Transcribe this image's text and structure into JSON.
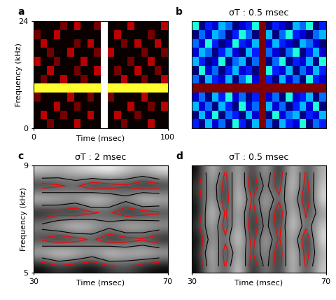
{
  "chart_data": [
    {
      "type": "heatmap",
      "panel": "a",
      "x_label": "Time (msec)",
      "y_label": "Frequency (kHz)",
      "xlim": [
        0,
        100
      ],
      "ylim": [
        0,
        24
      ],
      "xticks": [
        0,
        100
      ],
      "yticks": [
        0,
        24
      ],
      "cells": [
        [
          0.05,
          0.05,
          0.2,
          0.05,
          0.05,
          0.05,
          0.3,
          0.05,
          0.05,
          0.05,
          1.0,
          0.05,
          0.05,
          0.2,
          0.05,
          0.05,
          0.05,
          0.3,
          0.05,
          0.05
        ],
        [
          0.05,
          0.3,
          0.05,
          0.05,
          0.2,
          0.05,
          0.05,
          0.05,
          0.3,
          0.05,
          1.0,
          0.05,
          0.3,
          0.05,
          0.05,
          0.2,
          0.05,
          0.05,
          0.05,
          0.05
        ],
        [
          0.05,
          0.05,
          0.05,
          0.3,
          0.05,
          0.05,
          0.2,
          0.05,
          0.05,
          0.05,
          1.0,
          0.05,
          0.05,
          0.05,
          0.3,
          0.05,
          0.05,
          0.2,
          0.05,
          0.3
        ],
        [
          0.2,
          0.05,
          0.05,
          0.05,
          0.05,
          0.3,
          0.05,
          0.05,
          0.2,
          0.05,
          1.0,
          0.2,
          0.05,
          0.05,
          0.05,
          0.05,
          0.3,
          0.05,
          0.05,
          0.05
        ],
        [
          0.8,
          0.8,
          0.8,
          0.8,
          0.8,
          0.8,
          0.8,
          0.8,
          0.8,
          0.8,
          1.0,
          0.8,
          0.8,
          0.8,
          0.8,
          0.8,
          0.8,
          0.8,
          0.8,
          0.8
        ],
        [
          0.05,
          0.2,
          0.05,
          0.05,
          0.3,
          0.05,
          0.05,
          0.2,
          0.05,
          0.05,
          1.0,
          0.05,
          0.05,
          0.3,
          0.05,
          0.05,
          0.2,
          0.05,
          0.05,
          0.3
        ],
        [
          0.05,
          0.05,
          0.3,
          0.05,
          0.05,
          0.05,
          0.2,
          0.05,
          0.05,
          0.3,
          1.0,
          0.05,
          0.2,
          0.05,
          0.05,
          0.3,
          0.05,
          0.05,
          0.2,
          0.05
        ],
        [
          0.3,
          0.05,
          0.05,
          0.2,
          0.05,
          0.05,
          0.05,
          0.3,
          0.05,
          0.05,
          1.0,
          0.05,
          0.05,
          0.05,
          0.2,
          0.05,
          0.05,
          0.3,
          0.05,
          0.05
        ],
        [
          0.05,
          0.05,
          0.2,
          0.05,
          0.05,
          0.3,
          0.05,
          0.05,
          0.05,
          0.2,
          1.0,
          0.3,
          0.05,
          0.05,
          0.05,
          0.05,
          0.2,
          0.05,
          0.05,
          0.2
        ],
        [
          0.05,
          0.3,
          0.05,
          0.05,
          0.05,
          0.05,
          0.2,
          0.05,
          0.3,
          0.05,
          1.0,
          0.05,
          0.05,
          0.2,
          0.05,
          0.3,
          0.05,
          0.05,
          0.3,
          0.05
        ],
        [
          0.2,
          0.05,
          0.05,
          0.3,
          0.05,
          0.05,
          0.05,
          0.05,
          0.05,
          0.05,
          1.0,
          0.05,
          0.3,
          0.05,
          0.05,
          0.05,
          0.05,
          0.2,
          0.05,
          0.05
        ],
        [
          0.05,
          0.05,
          0.05,
          0.05,
          0.2,
          0.05,
          0.3,
          0.05,
          0.05,
          0.2,
          1.0,
          0.05,
          0.05,
          0.05,
          0.3,
          0.05,
          0.05,
          0.05,
          0.05,
          0.3
        ]
      ]
    },
    {
      "type": "heatmap",
      "panel": "b",
      "title": "σT : 0.5 msec",
      "tick_labels": false,
      "cells": [
        [
          0.4,
          0.3,
          0.5,
          0.35,
          0.45,
          0.3,
          0.55,
          0.4,
          0.3,
          0.5,
          0.95,
          0.45,
          0.3,
          0.5,
          0.4,
          0.35,
          0.55,
          0.3,
          0.45,
          0.4
        ],
        [
          0.3,
          0.5,
          0.35,
          0.55,
          0.3,
          0.45,
          0.4,
          0.3,
          0.5,
          0.35,
          0.95,
          0.3,
          0.55,
          0.35,
          0.45,
          0.5,
          0.3,
          0.4,
          0.35,
          0.5
        ],
        [
          0.5,
          0.35,
          0.45,
          0.3,
          0.5,
          0.4,
          0.3,
          0.55,
          0.35,
          0.45,
          0.95,
          0.5,
          0.35,
          0.45,
          0.3,
          0.4,
          0.5,
          0.35,
          0.55,
          0.3
        ],
        [
          0.35,
          0.45,
          0.3,
          0.5,
          0.4,
          0.55,
          0.35,
          0.45,
          0.3,
          0.4,
          0.95,
          0.35,
          0.45,
          0.3,
          0.55,
          0.35,
          0.4,
          0.5,
          0.3,
          0.45
        ],
        [
          0.95,
          0.95,
          0.95,
          0.95,
          0.95,
          0.95,
          0.95,
          0.95,
          0.95,
          0.95,
          0.95,
          0.95,
          0.95,
          0.95,
          0.95,
          0.95,
          0.95,
          0.95,
          0.95,
          0.95
        ],
        [
          0.45,
          0.3,
          0.5,
          0.4,
          0.35,
          0.5,
          0.3,
          0.45,
          0.55,
          0.35,
          0.95,
          0.4,
          0.3,
          0.5,
          0.35,
          0.45,
          0.3,
          0.55,
          0.4,
          0.35
        ],
        [
          0.3,
          0.55,
          0.35,
          0.45,
          0.3,
          0.4,
          0.5,
          0.35,
          0.4,
          0.3,
          0.95,
          0.55,
          0.4,
          0.35,
          0.5,
          0.3,
          0.45,
          0.35,
          0.5,
          0.4
        ],
        [
          0.5,
          0.4,
          0.3,
          0.35,
          0.55,
          0.3,
          0.45,
          0.5,
          0.3,
          0.45,
          0.95,
          0.3,
          0.45,
          0.55,
          0.3,
          0.4,
          0.35,
          0.5,
          0.3,
          0.55
        ],
        [
          0.35,
          0.5,
          0.45,
          0.3,
          0.4,
          0.5,
          0.35,
          0.3,
          0.5,
          0.4,
          0.95,
          0.45,
          0.35,
          0.3,
          0.45,
          0.55,
          0.3,
          0.4,
          0.5,
          0.35
        ],
        [
          0.45,
          0.35,
          0.55,
          0.4,
          0.3,
          0.35,
          0.55,
          0.4,
          0.35,
          0.5,
          0.95,
          0.35,
          0.5,
          0.4,
          0.35,
          0.3,
          0.5,
          0.45,
          0.35,
          0.3
        ],
        [
          0.3,
          0.45,
          0.35,
          0.5,
          0.45,
          0.3,
          0.4,
          0.55,
          0.45,
          0.3,
          0.95,
          0.5,
          0.3,
          0.45,
          0.55,
          0.4,
          0.35,
          0.3,
          0.45,
          0.5
        ],
        [
          0.55,
          0.3,
          0.4,
          0.35,
          0.5,
          0.45,
          0.3,
          0.35,
          0.4,
          0.55,
          0.95,
          0.3,
          0.4,
          0.35,
          0.3,
          0.5,
          0.45,
          0.55,
          0.3,
          0.4
        ]
      ]
    },
    {
      "type": "heatmap",
      "panel": "c",
      "title": "σT : 2 msec",
      "x_label": "Time (msec)",
      "y_label": "Frequency (kHz)",
      "xlim": [
        30,
        70
      ],
      "ylim": [
        5,
        9
      ],
      "xticks": [
        30,
        70
      ],
      "yticks": [
        5,
        9
      ],
      "contours": [
        {
          "color": "black",
          "levels": [
            0.55
          ]
        },
        {
          "color": "red",
          "levels": [
            0.42
          ]
        }
      ],
      "cells": [
        [
          0.3,
          0.4,
          0.35,
          0.3,
          0.4,
          0.45,
          0.35,
          0.3
        ],
        [
          0.7,
          0.8,
          0.75,
          0.65,
          0.8,
          0.7,
          0.75,
          0.7
        ],
        [
          0.4,
          0.3,
          0.35,
          0.45,
          0.3,
          0.35,
          0.4,
          0.3
        ],
        [
          0.6,
          0.7,
          0.8,
          0.7,
          0.6,
          0.75,
          0.7,
          0.65
        ],
        [
          0.3,
          0.35,
          0.3,
          0.4,
          0.45,
          0.3,
          0.35,
          0.4
        ],
        [
          0.75,
          0.7,
          0.65,
          0.8,
          0.7,
          0.6,
          0.8,
          0.7
        ],
        [
          0.35,
          0.4,
          0.45,
          0.3,
          0.35,
          0.4,
          0.3,
          0.35
        ],
        [
          0.7,
          0.65,
          0.7,
          0.75,
          0.8,
          0.7,
          0.65,
          0.75
        ]
      ]
    },
    {
      "type": "heatmap",
      "panel": "d",
      "title": "σT : 0.5 msec",
      "x_label": "Time (msec)",
      "xlim": [
        30,
        70
      ],
      "ylim": [
        5,
        9
      ],
      "xticks": [
        30,
        70
      ],
      "tick_labels": "x",
      "contours": [
        {
          "color": "black",
          "levels": [
            0.55
          ]
        },
        {
          "color": "red",
          "levels": [
            0.42
          ]
        }
      ],
      "cells": [
        [
          0.3,
          0.7,
          0.4,
          0.8,
          0.3,
          0.6,
          0.35,
          0.75,
          0.4,
          0.7
        ],
        [
          0.35,
          0.75,
          0.35,
          0.7,
          0.4,
          0.65,
          0.3,
          0.8,
          0.35,
          0.65
        ],
        [
          0.3,
          0.65,
          0.45,
          0.8,
          0.35,
          0.7,
          0.4,
          0.7,
          0.3,
          0.75
        ],
        [
          0.4,
          0.7,
          0.35,
          0.75,
          0.3,
          0.6,
          0.35,
          0.8,
          0.45,
          0.7
        ],
        [
          0.3,
          0.8,
          0.4,
          0.7,
          0.35,
          0.65,
          0.3,
          0.75,
          0.4,
          0.6
        ],
        [
          0.35,
          0.7,
          0.3,
          0.8,
          0.4,
          0.7,
          0.45,
          0.7,
          0.3,
          0.75
        ],
        [
          0.4,
          0.65,
          0.35,
          0.75,
          0.3,
          0.6,
          0.35,
          0.8,
          0.35,
          0.7
        ],
        [
          0.3,
          0.75,
          0.4,
          0.7,
          0.35,
          0.7,
          0.3,
          0.75,
          0.4,
          0.65
        ]
      ]
    }
  ]
}
